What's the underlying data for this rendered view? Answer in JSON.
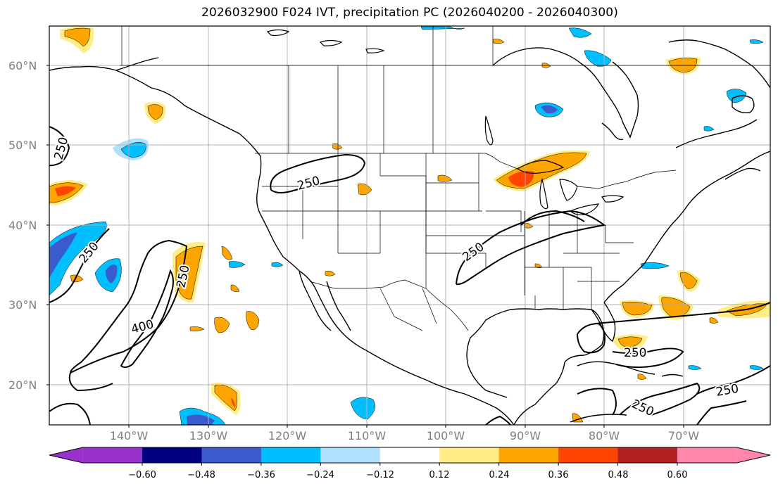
{
  "title": "2026032900 F024 IVT, precipitation PC (2026040200 - 2026040300)",
  "map": {
    "lon_range": [
      -150,
      -59
    ],
    "lat_range": [
      15,
      65
    ],
    "lat_labels": [
      "20°N",
      "30°N",
      "40°N",
      "50°N",
      "60°N"
    ],
    "lon_labels": [
      "140°W",
      "130°W",
      "120°W",
      "110°W",
      "100°W",
      "90°W",
      "80°W",
      "70°W"
    ],
    "ivt_contour_labels": [
      "250",
      "250",
      "250",
      "250",
      "400",
      "250",
      "250",
      "250",
      "250"
    ]
  },
  "colorbar": {
    "ticks": [
      "−0.60",
      "−0.48",
      "−0.36",
      "−0.24",
      "−0.12",
      "0.12",
      "0.24",
      "0.36",
      "0.48",
      "0.60"
    ],
    "colors": [
      "#9932cc",
      "#000080",
      "#3a5bcc",
      "#00bfff",
      "#b0e0ff",
      "#ffffff",
      "#ffee88",
      "#ffa500",
      "#ff4500",
      "#b22222",
      "#ff88aa"
    ]
  }
}
